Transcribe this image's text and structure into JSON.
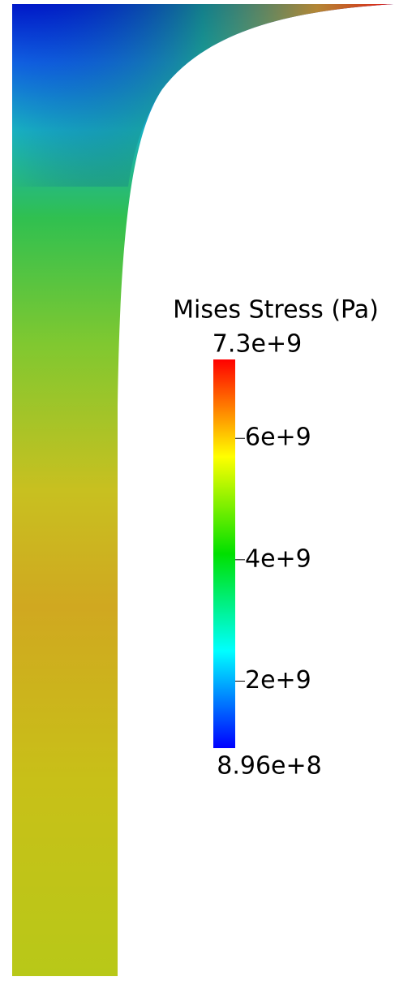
{
  "legend": {
    "title": "Mises Stress (Pa)",
    "range": [
      {
        "value": 896000000,
        "label": "8.96e+8"
      },
      {
        "value": 7300000000,
        "label": "7.3e+9"
      }
    ],
    "ticks": [
      {
        "value": 2000000000,
        "label": "2e+9"
      },
      {
        "value": 4000000000,
        "label": "4e+9"
      },
      {
        "value": 6000000000,
        "label": "6e+9"
      }
    ]
  }
}
